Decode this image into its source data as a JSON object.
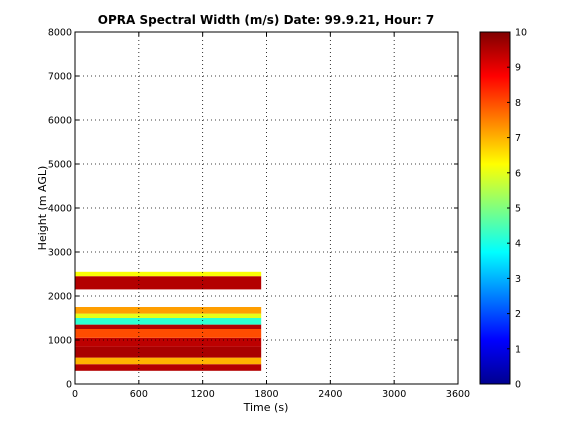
{
  "chart_data": {
    "type": "heatmap",
    "title": "OPRA Spectral Width (m/s)  Date: 99.9.21, Hour: 7",
    "xlabel": "Time (s)",
    "ylabel": "Height (m AGL)",
    "xlim": [
      0,
      3600
    ],
    "ylim": [
      0,
      8000
    ],
    "x_ticks": [
      0,
      600,
      1200,
      1800,
      2400,
      3000,
      3600
    ],
    "y_ticks": [
      0,
      1000,
      2000,
      3000,
      4000,
      5000,
      6000,
      7000,
      8000
    ],
    "grid": true,
    "colorbar": {
      "range": [
        0,
        10
      ],
      "ticks": [
        0,
        1,
        2,
        3,
        4,
        5,
        6,
        7,
        8,
        9,
        10
      ],
      "colormap": "jet"
    },
    "bands": [
      {
        "x": [
          0,
          1750
        ],
        "y": [
          300,
          450
        ],
        "value": 9.5
      },
      {
        "x": [
          0,
          1750
        ],
        "y": [
          450,
          600
        ],
        "value": 7.0
      },
      {
        "x": [
          0,
          1750
        ],
        "y": [
          600,
          850
        ],
        "value": 9.6
      },
      {
        "x": [
          0,
          1750
        ],
        "y": [
          850,
          1050
        ],
        "value": 9.4
      },
      {
        "x": [
          0,
          1750
        ],
        "y": [
          1050,
          1250
        ],
        "value": 8.0
      },
      {
        "x": [
          0,
          1750
        ],
        "y": [
          1250,
          1350
        ],
        "value": 9.5
      },
      {
        "x": [
          0,
          1750
        ],
        "y": [
          1350,
          1500
        ],
        "value": 4.2
      },
      {
        "x": [
          0,
          1750
        ],
        "y": [
          1500,
          1600
        ],
        "value": 6.0
      },
      {
        "x": [
          0,
          1750
        ],
        "y": [
          1600,
          1750
        ],
        "value": 7.2
      },
      {
        "x": [
          0,
          1750
        ],
        "y": [
          2150,
          2450
        ],
        "value": 9.5
      },
      {
        "x": [
          0,
          1750
        ],
        "y": [
          2450,
          2550
        ],
        "value": 6.2
      }
    ]
  }
}
